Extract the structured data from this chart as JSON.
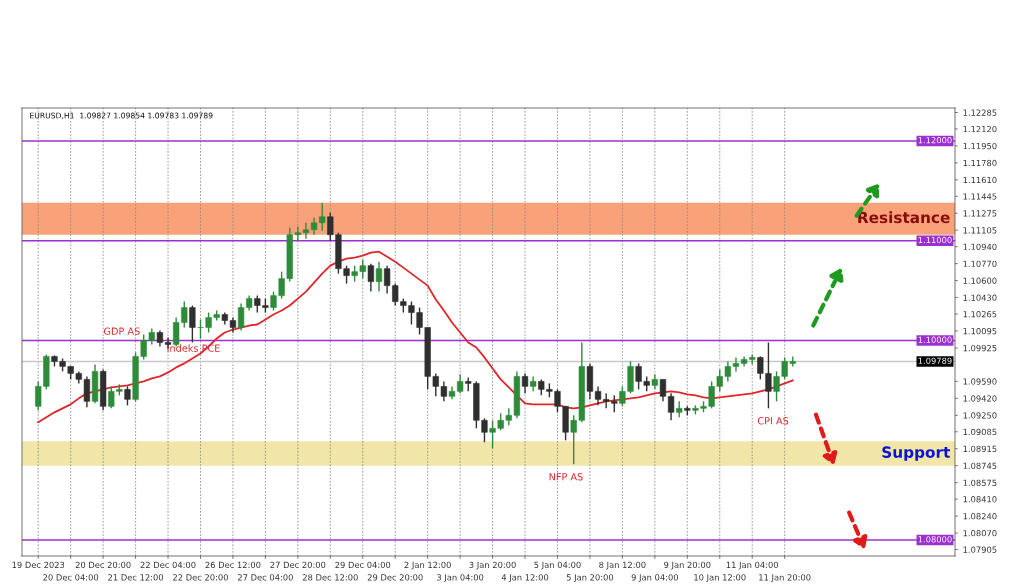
{
  "chart_data": {
    "type": "candlestick",
    "categories": [
      "19 Dec 2023",
      null,
      null,
      null,
      "20 Dec 04:00",
      null,
      null,
      null,
      "20 Dec 20:00",
      null,
      null,
      null,
      "21 Dec 12:00",
      null,
      null,
      null,
      "22 Dec 04:00",
      null,
      null,
      null,
      "22 Dec 20:00",
      null,
      null,
      null,
      "26 Dec 12:00",
      null,
      null,
      null,
      "27 Dec 04:00",
      null,
      null,
      null,
      "27 Dec 20:00",
      null,
      null,
      null,
      "28 Dec 12:00",
      null,
      null,
      null,
      "29 Dec 04:00",
      null,
      null,
      null,
      "29 Dec 20:00",
      null,
      null,
      null,
      "2 Jan 12:00",
      null,
      null,
      null,
      "3 Jan 04:00",
      null,
      null,
      null,
      "3 Jan 20:00",
      null,
      null,
      null,
      "4 Jan 12:00",
      null,
      null,
      null,
      "5 Jan 04:00",
      null,
      null,
      null,
      "5 Jan 20:00",
      null,
      null,
      null,
      "8 Jan 12:00",
      null,
      null,
      null,
      "9 Jan 04:00",
      null,
      null,
      null,
      "9 Jan 20:00",
      null,
      null,
      null,
      "10 Jan 12:00",
      null,
      null,
      null,
      "11 Jan 04:00",
      null,
      null,
      null,
      "11 Jan 20:00",
      null
    ],
    "ohlc": [
      [
        1.0934,
        1.0959,
        1.093,
        1.0954
      ],
      [
        1.0954,
        1.0986,
        1.0951,
        1.0984
      ],
      [
        1.0984,
        1.0985,
        1.0974,
        1.0979
      ],
      [
        1.0979,
        1.0982,
        1.0969,
        1.0974
      ],
      [
        1.0974,
        1.0974,
        1.0961,
        1.0967
      ],
      [
        1.0967,
        1.0969,
        1.0957,
        1.0961
      ],
      [
        1.0961,
        1.0964,
        1.0933,
        1.0939
      ],
      [
        1.0939,
        1.0976,
        1.0937,
        1.0969
      ],
      [
        1.0969,
        1.0971,
        1.093,
        1.0934
      ],
      [
        1.0934,
        1.0954,
        1.0932,
        1.0949
      ],
      [
        1.0949,
        1.0956,
        1.0945,
        1.0951
      ],
      [
        1.0951,
        1.0954,
        1.0935,
        1.0941
      ],
      [
        1.0941,
        1.0988,
        1.0939,
        1.0984
      ],
      [
        1.0984,
        1.1006,
        1.0981,
        1.1
      ],
      [
        1.1,
        1.1012,
        1.0996,
        1.1008
      ],
      [
        1.1008,
        1.101,
        1.0994,
        1.0998
      ],
      [
        1.0998,
        1.1003,
        1.0992,
        1.0996
      ],
      [
        1.0996,
        1.1023,
        1.0994,
        1.1018
      ],
      [
        1.1018,
        1.1039,
        1.1013,
        1.1033
      ],
      [
        1.1033,
        1.1035,
        1.0998,
        1.1013
      ],
      [
        1.1013,
        1.1021,
        1.1002,
        1.1013
      ],
      [
        1.1013,
        1.1028,
        1.1008,
        1.1023
      ],
      [
        1.1023,
        1.103,
        1.102,
        1.1026
      ],
      [
        1.1026,
        1.1028,
        1.1016,
        1.102
      ],
      [
        1.102,
        1.1023,
        1.1008,
        1.1013
      ],
      [
        1.1013,
        1.1037,
        1.101,
        1.1033
      ],
      [
        1.1033,
        1.1045,
        1.103,
        1.1042
      ],
      [
        1.1042,
        1.1045,
        1.1028,
        1.1035
      ],
      [
        1.1035,
        1.1042,
        1.1028,
        1.1033
      ],
      [
        1.1033,
        1.1049,
        1.103,
        1.1045
      ],
      [
        1.1045,
        1.1069,
        1.1042,
        1.1062
      ],
      [
        1.1062,
        1.1113,
        1.1059,
        1.1106
      ],
      [
        1.1106,
        1.1114,
        1.11,
        1.1108
      ],
      [
        1.1108,
        1.1118,
        1.1102,
        1.1111
      ],
      [
        1.1111,
        1.1123,
        1.1106,
        1.1118
      ],
      [
        1.1118,
        1.1138,
        1.111,
        1.1124
      ],
      [
        1.1124,
        1.1128,
        1.11,
        1.1106
      ],
      [
        1.1106,
        1.1108,
        1.1067,
        1.1072
      ],
      [
        1.1072,
        1.1075,
        1.1057,
        1.1065
      ],
      [
        1.1065,
        1.1075,
        1.1059,
        1.1069
      ],
      [
        1.1069,
        1.1081,
        1.1062,
        1.1075
      ],
      [
        1.1075,
        1.1077,
        1.1049,
        1.1059
      ],
      [
        1.1059,
        1.1079,
        1.1049,
        1.1072
      ],
      [
        1.1072,
        1.1075,
        1.1047,
        1.1055
      ],
      [
        1.1055,
        1.1057,
        1.1035,
        1.1039
      ],
      [
        1.1039,
        1.1042,
        1.1028,
        1.1035
      ],
      [
        1.1035,
        1.1039,
        1.1016,
        1.1028
      ],
      [
        1.1028,
        1.1033,
        1.1006,
        1.1013
      ],
      [
        1.1013,
        1.1013,
        1.0951,
        1.0964
      ],
      [
        1.0964,
        1.0967,
        1.0944,
        1.0954
      ],
      [
        1.0954,
        1.0959,
        1.0939,
        1.0944
      ],
      [
        1.0944,
        1.0954,
        1.0941,
        1.0949
      ],
      [
        1.0949,
        1.0966,
        1.0947,
        1.0959
      ],
      [
        1.0959,
        1.0963,
        1.0949,
        1.0957
      ],
      [
        1.0957,
        1.0959,
        1.0912,
        1.092
      ],
      [
        1.092,
        1.0922,
        1.0898,
        1.0908
      ],
      [
        1.0908,
        1.092,
        1.0892,
        1.0912
      ],
      [
        1.0912,
        1.0927,
        1.091,
        1.092
      ],
      [
        1.092,
        1.0932,
        1.0915,
        1.0925
      ],
      [
        1.0925,
        1.0969,
        1.0922,
        1.0964
      ],
      [
        1.0964,
        1.0967,
        1.0947,
        1.0954
      ],
      [
        1.0954,
        1.0964,
        1.0949,
        1.0959
      ],
      [
        1.0959,
        1.0961,
        1.0945,
        1.0951
      ],
      [
        1.0951,
        1.0957,
        1.0943,
        1.0949
      ],
      [
        1.0949,
        1.0951,
        1.0928,
        1.0934
      ],
      [
        1.0934,
        1.0934,
        1.09,
        1.0908
      ],
      [
        1.0908,
        1.0925,
        1.0876,
        1.092
      ],
      [
        1.092,
        1.0998,
        1.0918,
        1.0974
      ],
      [
        1.0974,
        1.0977,
        1.0941,
        1.0949
      ],
      [
        1.0949,
        1.0954,
        1.0935,
        1.0941
      ],
      [
        1.0941,
        1.0947,
        1.0932,
        1.0939
      ],
      [
        1.0939,
        1.0945,
        1.0928,
        1.0937
      ],
      [
        1.0937,
        1.0954,
        1.0934,
        1.0949
      ],
      [
        1.0949,
        1.0979,
        1.0947,
        1.0974
      ],
      [
        1.0974,
        1.0977,
        1.0951,
        1.0959
      ],
      [
        1.0959,
        1.0964,
        1.0949,
        1.0955
      ],
      [
        1.0955,
        1.0966,
        1.0951,
        1.0961
      ],
      [
        1.0961,
        1.0961,
        1.0939,
        1.0944
      ],
      [
        1.0944,
        1.0947,
        1.092,
        1.0928
      ],
      [
        1.0928,
        1.0939,
        1.0923,
        1.0932
      ],
      [
        1.0932,
        1.0934,
        1.0925,
        1.093
      ],
      [
        1.093,
        1.0935,
        1.0926,
        1.0932
      ],
      [
        1.0932,
        1.0939,
        1.0928,
        1.0934
      ],
      [
        1.0934,
        1.0959,
        1.0932,
        1.0954
      ],
      [
        1.0954,
        1.0971,
        1.0949,
        1.0964
      ],
      [
        1.0964,
        1.0979,
        1.0959,
        1.0974
      ],
      [
        1.0974,
        1.0983,
        1.0969,
        1.0977
      ],
      [
        1.0977,
        1.0984,
        1.0974,
        1.0981
      ],
      [
        1.0981,
        1.0986,
        1.0976,
        1.0983
      ],
      [
        1.0983,
        1.0984,
        1.0961,
        1.0967
      ],
      [
        1.0967,
        1.0998,
        1.0932,
        1.0949
      ],
      [
        1.0949,
        1.0969,
        1.0939,
        1.0964
      ],
      [
        1.0964,
        1.0983,
        1.0961,
        1.0979
      ],
      [
        1.0977,
        1.0984,
        1.0974,
        1.0979
      ]
    ],
    "series": [
      {
        "type": "line",
        "color": "#e0262b",
        "values": [
          1.0918,
          1.0923,
          1.0928,
          1.0932,
          1.0936,
          1.0942,
          1.0947,
          1.0949,
          1.0951,
          1.0953,
          1.0954,
          1.0955,
          1.0957,
          1.0959,
          1.0962,
          1.0964,
          1.0968,
          1.0973,
          1.0977,
          1.0982,
          1.0987,
          1.0994,
          1.1002,
          1.1008,
          1.1011,
          1.1013,
          1.1015,
          1.1016,
          1.1021,
          1.1026,
          1.103,
          1.1035,
          1.1042,
          1.1049,
          1.1058,
          1.1067,
          1.1075,
          1.1079,
          1.1082,
          1.1083,
          1.1085,
          1.1088,
          1.1089,
          1.1084,
          1.1079,
          1.1073,
          1.1067,
          1.1061,
          1.1055,
          1.1041,
          1.103,
          1.1018,
          1.1008,
          1.0998,
          1.0993,
          1.0983,
          1.0972,
          1.0961,
          1.0953,
          1.0945,
          1.0937,
          1.0936,
          1.0936,
          1.0936,
          1.0936,
          1.0933,
          1.0932,
          1.0933,
          1.0935,
          1.0937,
          1.0939,
          1.094,
          1.0941,
          1.0942,
          1.0943,
          1.0945,
          1.0947,
          1.0948,
          1.0949,
          1.0948,
          1.0946,
          1.0945,
          1.0943,
          1.0942,
          1.0943,
          1.0944,
          1.0945,
          1.0946,
          1.0947,
          1.0949,
          1.0951,
          1.0954,
          1.0957,
          1.096
        ]
      }
    ],
    "ylim": [
      1.0784,
      1.1233
    ],
    "yticks": [
      1.12285,
      {
        "value": 1.1212,
        "label": "1.12120"
      },
      {
        "value": 1.1195,
        "label": "1.11950"
      },
      {
        "value": 1.1178,
        "label": "1.11780"
      },
      {
        "value": 1.1161,
        "label": "1.11610"
      },
      1.11445,
      1.11275,
      1.11105,
      {
        "value": 1.1094,
        "label": "1.10940"
      },
      {
        "value": 1.1077,
        "label": "1.10770"
      },
      {
        "value": 1.106,
        "label": "1.10600"
      },
      {
        "value": 1.1043,
        "label": "1.10430"
      },
      1.10265,
      1.10095,
      1.09925,
      {
        "value": 1.0959,
        "label": "1.09590"
      },
      {
        "value": 1.0942,
        "label": "1.09420"
      },
      {
        "value": 1.0925,
        "label": "1.09250"
      },
      1.09085,
      1.08915,
      1.08745,
      1.08575,
      {
        "value": 1.0841,
        "label": "1.08410"
      },
      {
        "value": 1.0824,
        "label": "1.08240"
      },
      {
        "value": 1.0807,
        "label": "1.08070"
      },
      1.07905
    ],
    "ref_lines": [
      {
        "axis": "y",
        "value": 1.12,
        "label": "1.12000",
        "color": "#9b30d0"
      },
      {
        "axis": "y",
        "value": 1.11,
        "label": "1.11000",
        "color": "#9b30d0"
      },
      {
        "axis": "y",
        "value": 1.1,
        "label": "1.10000",
        "color": "#9b30d0"
      },
      {
        "axis": "y",
        "value": 1.08,
        "label": "1.08000",
        "color": "#9b30d0"
      },
      {
        "axis": "y",
        "value": 1.09789,
        "label": "1.09789",
        "color": "#c8c8c8"
      }
    ],
    "bands": [
      {
        "axis": "y",
        "from": 1.1106,
        "to": 1.1138,
        "label": "Resistance",
        "color": "#f9a27a"
      },
      {
        "axis": "y",
        "from": 1.08745,
        "to": 1.0899,
        "label": "Support",
        "color": "#f1e6a8"
      }
    ],
    "annotations": [
      "EURUSD,H1  1.09827 1.09854 1.09783 1.09789",
      "GDP AS",
      "Indeks PCE",
      "NFP AS",
      "CPI AS"
    ],
    "grid": "x"
  }
}
